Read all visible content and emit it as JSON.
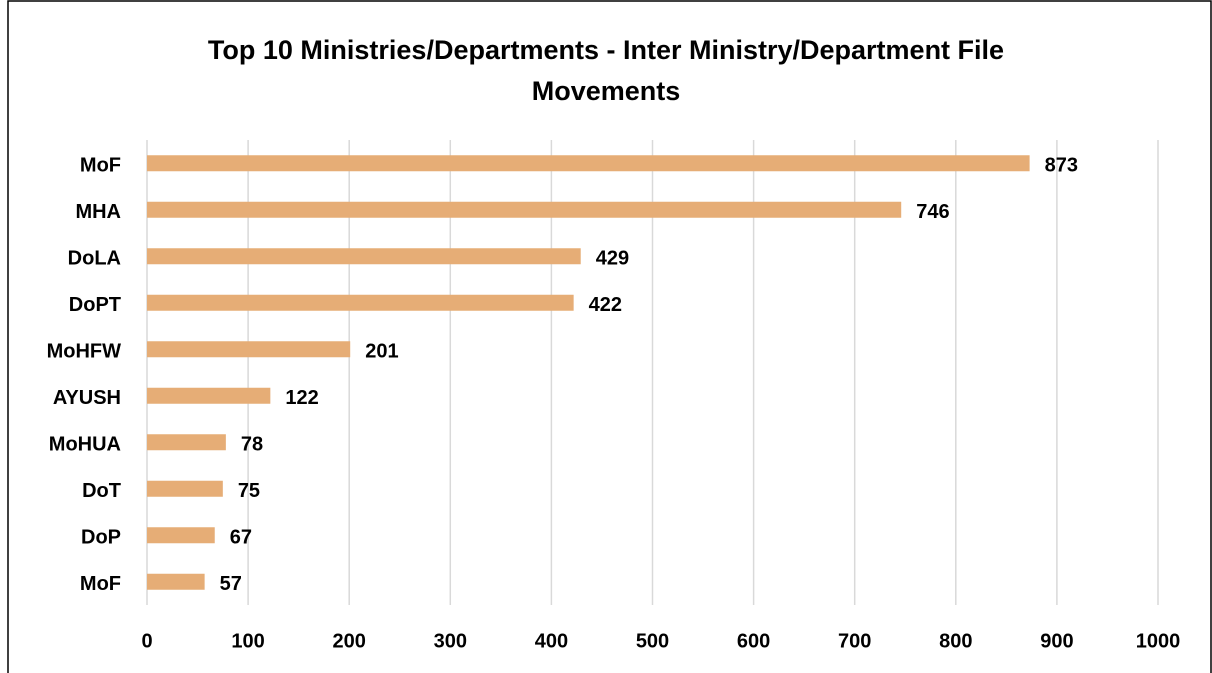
{
  "chart_data": {
    "type": "bar",
    "orientation": "horizontal",
    "title": "Top 10 Ministries/Departments - Inter Ministry/Department File Movements",
    "categories": [
      "MoF",
      "MHA",
      "DoLA",
      "DoPT",
      "MoHFW",
      "AYUSH",
      "MoHUA",
      "DoT",
      "DoP",
      "MoF"
    ],
    "values": [
      873,
      746,
      429,
      422,
      201,
      122,
      78,
      75,
      67,
      57
    ],
    "color": "#e6ad76",
    "xlim": [
      0,
      1000
    ],
    "xticks": [
      0,
      100,
      200,
      300,
      400,
      500,
      600,
      700,
      800,
      900,
      1000
    ],
    "grid": true,
    "data_labels": true
  }
}
